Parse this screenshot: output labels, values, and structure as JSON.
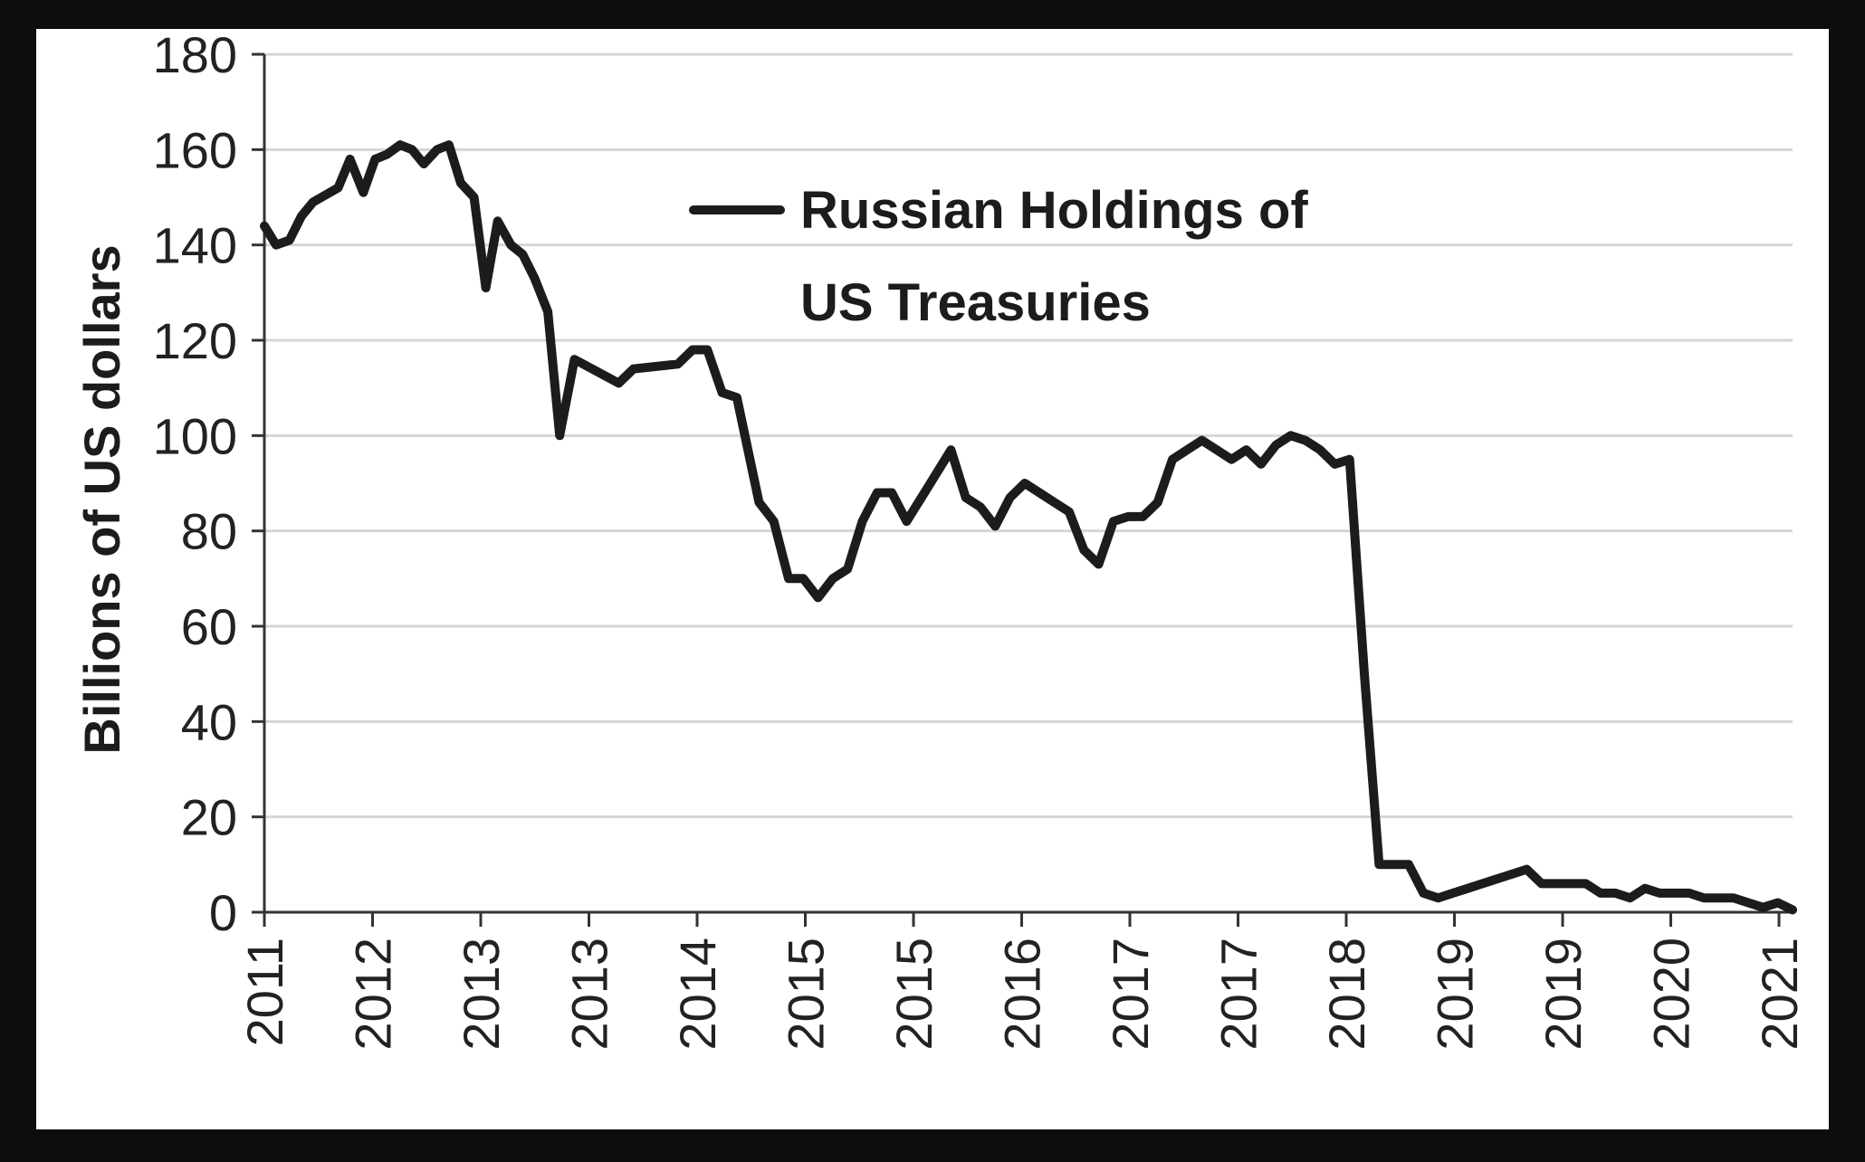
{
  "chart_data": {
    "type": "line",
    "ylabel": "Billions of US dollars",
    "ylim": [
      0,
      180
    ],
    "yticks": [
      0,
      20,
      40,
      60,
      80,
      100,
      120,
      140,
      160,
      180
    ],
    "xlim": [
      2011.0,
      2021.35
    ],
    "xtick_labels": [
      "2011",
      "2012",
      "2013",
      "2013",
      "2014",
      "2015",
      "2015",
      "2016",
      "2017",
      "2017",
      "2018",
      "2019",
      "2019",
      "2020",
      "2021"
    ],
    "grid": "horizontal",
    "legend_position": "upper-center",
    "colors": {
      "line": "#1c1c1c",
      "grid": "#d6d6d6",
      "axis": "#333333"
    },
    "series": [
      {
        "name": "Russian Holdings of US Treasuries",
        "x": [
          2011.0,
          2011.08,
          2011.17,
          2011.25,
          2011.33,
          2011.5,
          2011.58,
          2011.67,
          2011.75,
          2011.83,
          2011.92,
          2012.0,
          2012.08,
          2012.17,
          2012.25,
          2012.33,
          2012.42,
          2012.5,
          2012.58,
          2012.67,
          2012.75,
          2012.83,
          2012.92,
          2013.0,
          2013.1,
          2013.4,
          2013.5,
          2013.8,
          2013.9,
          2014.0,
          2014.1,
          2014.2,
          2014.35,
          2014.45,
          2014.55,
          2014.65,
          2014.75,
          2014.85,
          2014.95,
          2015.05,
          2015.15,
          2015.25,
          2015.35,
          2015.45,
          2015.55,
          2015.65,
          2015.75,
          2015.85,
          2015.95,
          2016.05,
          2016.15,
          2016.25,
          2016.35,
          2016.45,
          2016.55,
          2016.65,
          2016.75,
          2016.85,
          2016.95,
          2017.05,
          2017.15,
          2017.25,
          2017.35,
          2017.45,
          2017.55,
          2017.65,
          2017.75,
          2017.85,
          2017.95,
          2018.05,
          2018.15,
          2018.25,
          2018.35,
          2018.45,
          2018.55,
          2018.65,
          2018.75,
          2018.85,
          2018.95,
          2019.05,
          2019.15,
          2019.25,
          2019.35,
          2019.45,
          2019.55,
          2019.65,
          2019.75,
          2019.85,
          2019.95,
          2020.05,
          2020.15,
          2020.25,
          2020.35,
          2020.45,
          2020.55,
          2020.65,
          2020.75,
          2020.85,
          2020.95,
          2021.05,
          2021.15,
          2021.25,
          2021.35
        ],
        "y": [
          144,
          140,
          141,
          146,
          149,
          152,
          158,
          151,
          158,
          159,
          161,
          160,
          157,
          160,
          161,
          153,
          150,
          131,
          145,
          140,
          138,
          133,
          126,
          100,
          116,
          111,
          114,
          115,
          118,
          118,
          109,
          108,
          86,
          82,
          70,
          70,
          66,
          70,
          72,
          82,
          88,
          88,
          82,
          87,
          92,
          97,
          87,
          85,
          81,
          87,
          90,
          88,
          86,
          84,
          76,
          73,
          82,
          83,
          83,
          86,
          95,
          97,
          99,
          97,
          95,
          97,
          94,
          98,
          100,
          99,
          97,
          94,
          95,
          50,
          10,
          10,
          10,
          4,
          3,
          4,
          5,
          6,
          7,
          8,
          9,
          6,
          6,
          6,
          6,
          4,
          4,
          3,
          5,
          4,
          4,
          4,
          3,
          3,
          3,
          2,
          1,
          2,
          0.5
        ]
      }
    ]
  }
}
